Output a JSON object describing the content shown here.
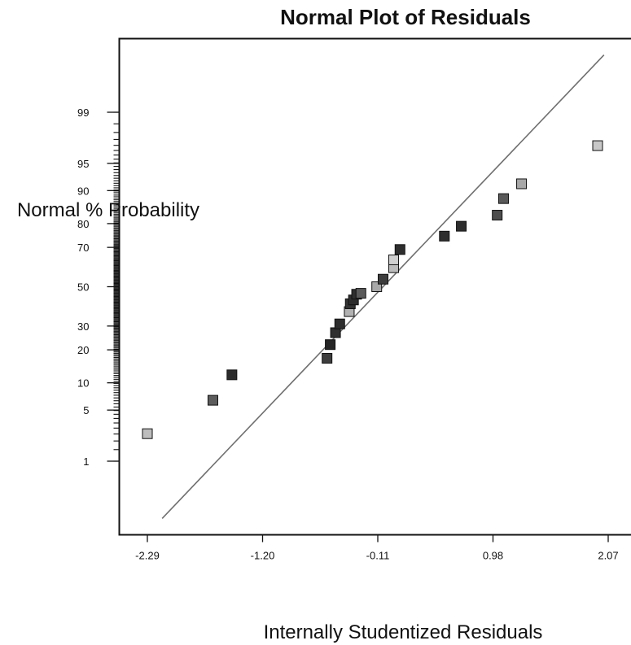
{
  "chart_data": {
    "type": "scatter",
    "title": "Normal Plot of Residuals",
    "xlabel": "Internally Studentized Residuals",
    "ylabel": "Normal % Probability",
    "x_ticks": [
      "-2.29",
      "-1.20",
      "-0.11",
      "0.98",
      "2.07"
    ],
    "y_ticks": [
      "1",
      "5",
      "10",
      "20",
      "30",
      "50",
      "70",
      "80",
      "90",
      "95",
      "99"
    ],
    "xlim": [
      -2.44,
      2.12
    ],
    "y_scale": "normal-probability",
    "grid": false,
    "reference_line": {
      "from": {
        "x": -2.15,
        "y": 0.1
      },
      "to": {
        "x": 2.03,
        "y": 99.9
      }
    },
    "series": [
      {
        "points": [
          {
            "x": -2.29,
            "y": 2.5,
            "color": "#bdbdbd"
          },
          {
            "x": -1.67,
            "y": 6.5,
            "color": "#5c5c5c"
          },
          {
            "x": -1.49,
            "y": 12,
            "color": "#2b2b2b"
          },
          {
            "x": -0.59,
            "y": 17,
            "color": "#3d3d3d"
          },
          {
            "x": -0.56,
            "y": 22,
            "color": "#262626"
          },
          {
            "x": -0.51,
            "y": 27,
            "color": "#303030"
          },
          {
            "x": -0.47,
            "y": 31,
            "color": "#2e2e2e"
          },
          {
            "x": -0.38,
            "y": 37,
            "color": "#b2b2b2"
          },
          {
            "x": -0.37,
            "y": 41,
            "color": "#333333"
          },
          {
            "x": -0.34,
            "y": 43,
            "color": "#2e2e2e"
          },
          {
            "x": -0.31,
            "y": 46,
            "color": "#2e2e2e"
          },
          {
            "x": -0.27,
            "y": 46.5,
            "color": "#5a5a5a"
          },
          {
            "x": -0.12,
            "y": 50,
            "color": "#a8a8a8"
          },
          {
            "x": -0.06,
            "y": 54,
            "color": "#3d3d3d"
          },
          {
            "x": 0.04,
            "y": 60,
            "color": "#bcbcbc"
          },
          {
            "x": 0.04,
            "y": 64,
            "color": "#d0d0d0"
          },
          {
            "x": 0.1,
            "y": 69,
            "color": "#2e2e2e"
          },
          {
            "x": 0.52,
            "y": 75,
            "color": "#2e2e2e"
          },
          {
            "x": 0.68,
            "y": 79,
            "color": "#2e2e2e"
          },
          {
            "x": 1.02,
            "y": 83,
            "color": "#4d4d4d"
          },
          {
            "x": 1.08,
            "y": 88,
            "color": "#5a5a5a"
          },
          {
            "x": 1.25,
            "y": 91.5,
            "color": "#a8a8a8"
          },
          {
            "x": 1.97,
            "y": 97,
            "color": "#c8c8c8"
          }
        ]
      }
    ]
  }
}
